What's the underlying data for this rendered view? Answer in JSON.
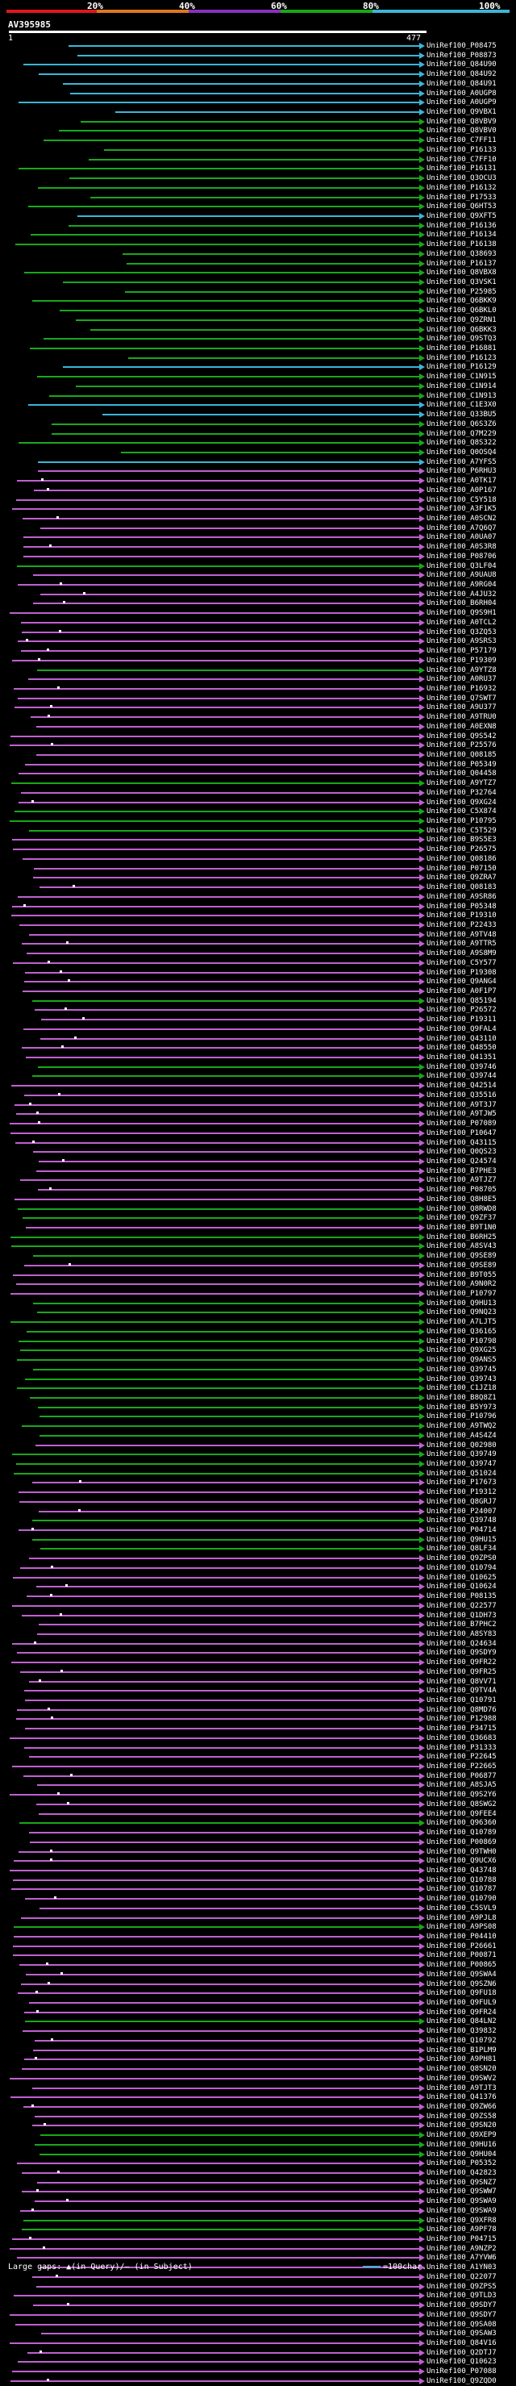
{
  "scale": {
    "labels": [
      "20%",
      "40%",
      "60%",
      "80%",
      "100%"
    ],
    "colors": [
      "#e0161d",
      "#e0781c",
      "#8a2fc0",
      "#18a81a",
      "#3ab6d8"
    ]
  },
  "query": {
    "id": "AV395985",
    "start": "1",
    "end": "477"
  },
  "footer": {
    "text": "Large gaps: ▲(in Query)/— (in Subject)",
    "legend": "=100char."
  },
  "identity_colors": {
    "80": "#18a81a",
    "100": "#3ab6d8",
    "60": "#c060d0"
  },
  "hits": [
    {
      "id": "UniRef100_P08475",
      "color": "100"
    },
    {
      "id": "UniRef100_P08873",
      "color": "100"
    },
    {
      "id": "UniRef100_Q84U90",
      "color": "100"
    },
    {
      "id": "UniRef100_Q84U92",
      "color": "100"
    },
    {
      "id": "UniRef100_Q84U91",
      "color": "100"
    },
    {
      "id": "UniRef100_A0UGP8",
      "color": "100"
    },
    {
      "id": "UniRef100_A0UGP9",
      "color": "100"
    },
    {
      "id": "UniRef100_Q9VBX1",
      "color": "100"
    },
    {
      "id": "UniRef100_Q8VBV9",
      "color": "80"
    },
    {
      "id": "UniRef100_Q8VBV0",
      "color": "80"
    },
    {
      "id": "UniRef100_C7FF11",
      "color": "80"
    },
    {
      "id": "UniRef100_P16133",
      "color": "80"
    },
    {
      "id": "UniRef100_C7FF10",
      "color": "80"
    },
    {
      "id": "UniRef100_P16131",
      "color": "80"
    },
    {
      "id": "UniRef100_Q3OCU3",
      "color": "80"
    },
    {
      "id": "UniRef100_P16132",
      "color": "80"
    },
    {
      "id": "UniRef100_P17533",
      "color": "80"
    },
    {
      "id": "UniRef100_Q6HT53",
      "color": "80"
    },
    {
      "id": "UniRef100_Q9XFT5",
      "color": "100"
    },
    {
      "id": "UniRef100_P16136",
      "color": "80"
    },
    {
      "id": "UniRef100_P16134",
      "color": "80"
    },
    {
      "id": "UniRef100_P16138",
      "color": "80"
    },
    {
      "id": "UniRef100_Q38693",
      "color": "80"
    },
    {
      "id": "UniRef100_P16137",
      "color": "80"
    },
    {
      "id": "UniRef100_Q8VBX8",
      "color": "80"
    },
    {
      "id": "UniRef100_Q3VSK1",
      "color": "80"
    },
    {
      "id": "UniRef100_P25985",
      "color": "80"
    },
    {
      "id": "UniRef100_Q6BKK9",
      "color": "80"
    },
    {
      "id": "UniRef100_Q6BKL0",
      "color": "80"
    },
    {
      "id": "UniRef100_Q9ZRN1",
      "color": "80"
    },
    {
      "id": "UniRef100_Q6BKK3",
      "color": "80"
    },
    {
      "id": "UniRef100_Q9STQ3",
      "color": "80"
    },
    {
      "id": "UniRef100_P16881",
      "color": "80"
    },
    {
      "id": "UniRef100_P16123",
      "color": "80"
    },
    {
      "id": "UniRef100_P16129",
      "color": "100"
    },
    {
      "id": "UniRef100_C1N915",
      "color": "80"
    },
    {
      "id": "UniRef100_C1N914",
      "color": "80"
    },
    {
      "id": "UniRef100_C1N913",
      "color": "80"
    },
    {
      "id": "UniRef100_C1E3X0",
      "color": "100"
    },
    {
      "id": "UniRef100_Q33BU5",
      "color": "100"
    },
    {
      "id": "UniRef100_Q6S3Z6",
      "color": "80"
    },
    {
      "id": "UniRef100_Q7M229",
      "color": "80"
    },
    {
      "id": "UniRef100_Q8S322",
      "color": "80"
    },
    {
      "id": "UniRef100_Q0OSQ4",
      "color": "80"
    },
    {
      "id": "UniRef100_A7YFS5",
      "color": "100"
    },
    {
      "id": "UniRef100_P6RHU3",
      "color": "60"
    },
    {
      "id": "UniRef100_A0TK17",
      "color": "60"
    },
    {
      "id": "UniRef100_A0P167",
      "color": "60"
    },
    {
      "id": "UniRef100_C5Y518",
      "color": "60"
    },
    {
      "id": "UniRef100_A3F1K5",
      "color": "60"
    },
    {
      "id": "UniRef100_A0SCN2",
      "color": "60"
    },
    {
      "id": "UniRef100_A7Q6Q7",
      "color": "60"
    },
    {
      "id": "UniRef100_A0UA07",
      "color": "60"
    },
    {
      "id": "UniRef100_A0S3R8",
      "color": "60"
    },
    {
      "id": "UniRef100_P08706",
      "color": "60"
    },
    {
      "id": "UniRef100_Q3LF04",
      "color": "80"
    },
    {
      "id": "UniRef100_A9UAU8",
      "color": "60"
    },
    {
      "id": "UniRef100_A9RG04",
      "color": "60"
    },
    {
      "id": "UniRef100_A4JU32",
      "color": "60"
    },
    {
      "id": "UniRef100_B6RH04",
      "color": "60"
    },
    {
      "id": "UniRef100_Q9S9H1",
      "color": "60"
    },
    {
      "id": "UniRef100_A0TCL2",
      "color": "60"
    },
    {
      "id": "UniRef100_Q3ZQ53",
      "color": "60"
    },
    {
      "id": "UniRef100_A9SRS3",
      "color": "60"
    },
    {
      "id": "UniRef100_P57179",
      "color": "60"
    },
    {
      "id": "UniRef100_P19309",
      "color": "60"
    },
    {
      "id": "UniRef100_A9YTZ8",
      "color": "80"
    },
    {
      "id": "UniRef100_A0RU37",
      "color": "60"
    },
    {
      "id": "UniRef100_P16932",
      "color": "60"
    },
    {
      "id": "UniRef100_Q7SWT7",
      "color": "60"
    },
    {
      "id": "UniRef100_A9U377",
      "color": "60"
    },
    {
      "id": "UniRef100_A9TRU0",
      "color": "60"
    },
    {
      "id": "UniRef100_A0EXN8",
      "color": "60"
    },
    {
      "id": "UniRef100_Q9S542",
      "color": "60"
    },
    {
      "id": "UniRef100_P25576",
      "color": "60"
    },
    {
      "id": "UniRef100_Q08185",
      "color": "60"
    },
    {
      "id": "UniRef100_P05349",
      "color": "60"
    },
    {
      "id": "UniRef100_Q04458",
      "color": "60"
    },
    {
      "id": "UniRef100_A9YTZ7",
      "color": "80"
    },
    {
      "id": "UniRef100_P32764",
      "color": "60"
    },
    {
      "id": "UniRef100_Q9XG24",
      "color": "60"
    },
    {
      "id": "UniRef100_C5X874",
      "color": "80"
    },
    {
      "id": "UniRef100_P10795",
      "color": "80"
    },
    {
      "id": "UniRef100_C5T529",
      "color": "80"
    },
    {
      "id": "UniRef100_B9S5E3",
      "color": "60"
    },
    {
      "id": "UniRef100_P26575",
      "color": "60"
    },
    {
      "id": "UniRef100_Q08186",
      "color": "60"
    },
    {
      "id": "UniRef100_P07150",
      "color": "60"
    },
    {
      "id": "UniRef100_Q9ZRA7",
      "color": "60"
    },
    {
      "id": "UniRef100_Q08183",
      "color": "60"
    },
    {
      "id": "UniRef100_A9SR86",
      "color": "60"
    },
    {
      "id": "UniRef100_P05348",
      "color": "60"
    },
    {
      "id": "UniRef100_P19310",
      "color": "60"
    },
    {
      "id": "UniRef100_P22433",
      "color": "60"
    },
    {
      "id": "UniRef100_A9TV48",
      "color": "60"
    },
    {
      "id": "UniRef100_A9TTR5",
      "color": "60"
    },
    {
      "id": "UniRef100_A9S8M9",
      "color": "60"
    },
    {
      "id": "UniRef100_C5Y577",
      "color": "60"
    },
    {
      "id": "UniRef100_P19308",
      "color": "60"
    },
    {
      "id": "UniRef100_Q9ANG4",
      "color": "60"
    },
    {
      "id": "UniRef100_A0F1P7",
      "color": "60"
    },
    {
      "id": "UniRef100_Q85194",
      "color": "80"
    },
    {
      "id": "UniRef100_P26572",
      "color": "60"
    },
    {
      "id": "UniRef100_P19311",
      "color": "60"
    },
    {
      "id": "UniRef100_Q9FAL4",
      "color": "60"
    },
    {
      "id": "UniRef100_Q43110",
      "color": "60"
    },
    {
      "id": "UniRef100_Q48550",
      "color": "60"
    },
    {
      "id": "UniRef100_Q41351",
      "color": "60"
    },
    {
      "id": "UniRef100_Q39746",
      "color": "80"
    },
    {
      "id": "UniRef100_Q39744",
      "color": "80"
    },
    {
      "id": "UniRef100_Q42514",
      "color": "60"
    },
    {
      "id": "UniRef100_Q35516",
      "color": "60"
    },
    {
      "id": "UniRef100_A9T3J7",
      "color": "60"
    },
    {
      "id": "UniRef100_A9TJW5",
      "color": "60"
    },
    {
      "id": "UniRef100_P07089",
      "color": "60"
    },
    {
      "id": "UniRef100_P10647",
      "color": "60"
    },
    {
      "id": "UniRef100_Q43115",
      "color": "60"
    },
    {
      "id": "UniRef100_Q0QS23",
      "color": "60"
    },
    {
      "id": "UniRef100_Q24574",
      "color": "60"
    },
    {
      "id": "UniRef100_B7PHE3",
      "color": "60"
    },
    {
      "id": "UniRef100_A9TJZ7",
      "color": "60"
    },
    {
      "id": "UniRef100_P08705",
      "color": "60"
    },
    {
      "id": "UniRef100_Q8H8E5",
      "color": "60"
    },
    {
      "id": "UniRef100_Q8RWD8",
      "color": "80"
    },
    {
      "id": "UniRef100_Q9ZF37",
      "color": "80"
    },
    {
      "id": "UniRef100_B9T1N0",
      "color": "60"
    },
    {
      "id": "UniRef100_B6RH25",
      "color": "80"
    },
    {
      "id": "UniRef100_A8SV43",
      "color": "80"
    },
    {
      "id": "UniRef100_Q9SE89",
      "color": "80"
    },
    {
      "id": "UniRef100_Q9SE89",
      "color": "60"
    },
    {
      "id": "UniRef100_B9T055",
      "color": "60"
    },
    {
      "id": "UniRef100_A9N0R2",
      "color": "60"
    },
    {
      "id": "UniRef100_P10797",
      "color": "60"
    },
    {
      "id": "UniRef100_Q9HU13",
      "color": "80"
    },
    {
      "id": "UniRef100_Q9NQ23",
      "color": "80"
    },
    {
      "id": "UniRef100_A7LJT5",
      "color": "80"
    },
    {
      "id": "UniRef100_Q36165",
      "color": "80"
    },
    {
      "id": "UniRef100_P10798",
      "color": "80"
    },
    {
      "id": "UniRef100_Q9XG25",
      "color": "80"
    },
    {
      "id": "UniRef100_Q9ANS5",
      "color": "80"
    },
    {
      "id": "UniRef100_Q39745",
      "color": "80"
    },
    {
      "id": "UniRef100_Q39743",
      "color": "80"
    },
    {
      "id": "UniRef100_C1JZ18",
      "color": "80"
    },
    {
      "id": "UniRef100_B8Q8Z1",
      "color": "80"
    },
    {
      "id": "UniRef100_B5Y973",
      "color": "80"
    },
    {
      "id": "UniRef100_P10796",
      "color": "80"
    },
    {
      "id": "UniRef100_A9TWQ2",
      "color": "80"
    },
    {
      "id": "UniRef100_A4S4Z4",
      "color": "80"
    },
    {
      "id": "UniRef100_Q02980",
      "color": "60"
    },
    {
      "id": "UniRef100_Q39749",
      "color": "80"
    },
    {
      "id": "UniRef100_Q39747",
      "color": "80"
    },
    {
      "id": "UniRef100_Q51024",
      "color": "80"
    },
    {
      "id": "UniRef100_P17673",
      "color": "60"
    },
    {
      "id": "UniRef100_P19312",
      "color": "60"
    },
    {
      "id": "UniRef100_Q8GRJ7",
      "color": "60"
    },
    {
      "id": "UniRef100_P24007",
      "color": "60"
    },
    {
      "id": "UniRef100_Q39748",
      "color": "80"
    },
    {
      "id": "UniRef100_P04714",
      "color": "60"
    },
    {
      "id": "UniRef100_Q9HU15",
      "color": "80"
    },
    {
      "id": "UniRef100_Q8LF34",
      "color": "80"
    },
    {
      "id": "UniRef100_Q9ZPS0",
      "color": "60"
    },
    {
      "id": "UniRef100_Q10794",
      "color": "60"
    },
    {
      "id": "UniRef100_Q10625",
      "color": "60"
    },
    {
      "id": "UniRef100_Q10624",
      "color": "60"
    },
    {
      "id": "UniRef100_P08135",
      "color": "60"
    },
    {
      "id": "UniRef100_Q22577",
      "color": "60"
    },
    {
      "id": "UniRef100_Q1DH73",
      "color": "60"
    },
    {
      "id": "UniRef100_B7PHC2",
      "color": "60"
    },
    {
      "id": "UniRef100_A8SY83",
      "color": "60"
    },
    {
      "id": "UniRef100_Q24634",
      "color": "60"
    },
    {
      "id": "UniRef100_Q9SDY9",
      "color": "60"
    },
    {
      "id": "UniRef100_Q9FR22",
      "color": "60"
    },
    {
      "id": "UniRef100_Q9FR25",
      "color": "60"
    },
    {
      "id": "UniRef100_Q8VV71",
      "color": "60"
    },
    {
      "id": "UniRef100_Q9TV4A",
      "color": "60"
    },
    {
      "id": "UniRef100_Q10791",
      "color": "60"
    },
    {
      "id": "UniRef100_Q8MD76",
      "color": "60"
    },
    {
      "id": "UniRef100_P12988",
      "color": "60"
    },
    {
      "id": "UniRef100_P34715",
      "color": "60"
    },
    {
      "id": "UniRef100_Q36683",
      "color": "60"
    },
    {
      "id": "UniRef100_P31333",
      "color": "60"
    },
    {
      "id": "UniRef100_P22645",
      "color": "60"
    },
    {
      "id": "UniRef100_P22665",
      "color": "60"
    },
    {
      "id": "UniRef100_P06877",
      "color": "60"
    },
    {
      "id": "UniRef100_A8SJA5",
      "color": "60"
    },
    {
      "id": "UniRef100_Q9S2Y6",
      "color": "60"
    },
    {
      "id": "UniRef100_Q8SWG2",
      "color": "60"
    },
    {
      "id": "UniRef100_Q9FEE4",
      "color": "60"
    },
    {
      "id": "UniRef100_Q96360",
      "color": "80"
    },
    {
      "id": "UniRef100_Q10789",
      "color": "60"
    },
    {
      "id": "UniRef100_P00869",
      "color": "60"
    },
    {
      "id": "UniRef100_Q9TWH0",
      "color": "60"
    },
    {
      "id": "UniRef100_Q9UCX6",
      "color": "60"
    },
    {
      "id": "UniRef100_Q43748",
      "color": "60"
    },
    {
      "id": "UniRef100_Q10788",
      "color": "60"
    },
    {
      "id": "UniRef100_Q10787",
      "color": "60"
    },
    {
      "id": "UniRef100_Q10790",
      "color": "60"
    },
    {
      "id": "UniRef100_C5SVL9",
      "color": "60"
    },
    {
      "id": "UniRef100_A9PJL8",
      "color": "60"
    },
    {
      "id": "UniRef100_A9PS08",
      "color": "80"
    },
    {
      "id": "UniRef100_P04410",
      "color": "60"
    },
    {
      "id": "UniRef100_P26661",
      "color": "60"
    },
    {
      "id": "UniRef100_P00871",
      "color": "60"
    },
    {
      "id": "UniRef100_P00865",
      "color": "60"
    },
    {
      "id": "UniRef100_Q9SWA4",
      "color": "60"
    },
    {
      "id": "UniRef100_Q9SZN6",
      "color": "60"
    },
    {
      "id": "UniRef100_Q9FU18",
      "color": "60"
    },
    {
      "id": "UniRef100_Q9FUL9",
      "color": "60"
    },
    {
      "id": "UniRef100_Q9FR24",
      "color": "60"
    },
    {
      "id": "UniRef100_Q84LN2",
      "color": "80"
    },
    {
      "id": "UniRef100_Q39832",
      "color": "60"
    },
    {
      "id": "UniRef100_Q10792",
      "color": "60"
    },
    {
      "id": "UniRef100_B1PLM9",
      "color": "60"
    },
    {
      "id": "UniRef100_A9PH81",
      "color": "60"
    },
    {
      "id": "UniRef100_Q8SN20",
      "color": "60"
    },
    {
      "id": "UniRef100_Q9SWV2",
      "color": "60"
    },
    {
      "id": "UniRef100_A9TJT3",
      "color": "60"
    },
    {
      "id": "UniRef100_Q41376",
      "color": "60"
    },
    {
      "id": "UniRef100_Q9ZW66",
      "color": "60"
    },
    {
      "id": "UniRef100_Q9ZS58",
      "color": "60"
    },
    {
      "id": "UniRef100_Q9SN20",
      "color": "60"
    },
    {
      "id": "UniRef100_Q9XEP9",
      "color": "80"
    },
    {
      "id": "UniRef100_Q9HU16",
      "color": "80"
    },
    {
      "id": "UniRef100_Q9HU04",
      "color": "80"
    },
    {
      "id": "UniRef100_P05352",
      "color": "60"
    },
    {
      "id": "UniRef100_Q42823",
      "color": "60"
    },
    {
      "id": "UniRef100_Q9SNZ7",
      "color": "60"
    },
    {
      "id": "UniRef100_Q9SWW7",
      "color": "60"
    },
    {
      "id": "UniRef100_Q9SWA9",
      "color": "60"
    },
    {
      "id": "UniRef100_Q9SWA9",
      "color": "60"
    },
    {
      "id": "UniRef100_Q9XFR8",
      "color": "80"
    },
    {
      "id": "UniRef100_A9PF78",
      "color": "80"
    },
    {
      "id": "UniRef100_P04715",
      "color": "60"
    },
    {
      "id": "UniRef100_A9NZP2",
      "color": "60"
    },
    {
      "id": "UniRef100_A7YVW6",
      "color": "60"
    },
    {
      "id": "UniRef100_A1YN03",
      "color": "60"
    },
    {
      "id": "UniRef100_Q22077",
      "color": "60"
    },
    {
      "id": "UniRef100_Q9ZPS5",
      "color": "60"
    },
    {
      "id": "UniRef100_Q9TLD3",
      "color": "60"
    },
    {
      "id": "UniRef100_Q9SDY7",
      "color": "60"
    },
    {
      "id": "UniRef100_Q9SDY7",
      "color": "60"
    },
    {
      "id": "UniRef100_Q9SA08",
      "color": "60"
    },
    {
      "id": "UniRef100_Q9SAW3",
      "color": "60"
    },
    {
      "id": "UniRef100_Q84V16",
      "color": "60"
    },
    {
      "id": "UniRef100_Q2DTJ7",
      "color": "60"
    },
    {
      "id": "UniRef100_Q10623",
      "color": "60"
    },
    {
      "id": "UniRef100_P07088",
      "color": "60"
    },
    {
      "id": "UniRef100_Q9ZQD0",
      "color": "60"
    }
  ]
}
